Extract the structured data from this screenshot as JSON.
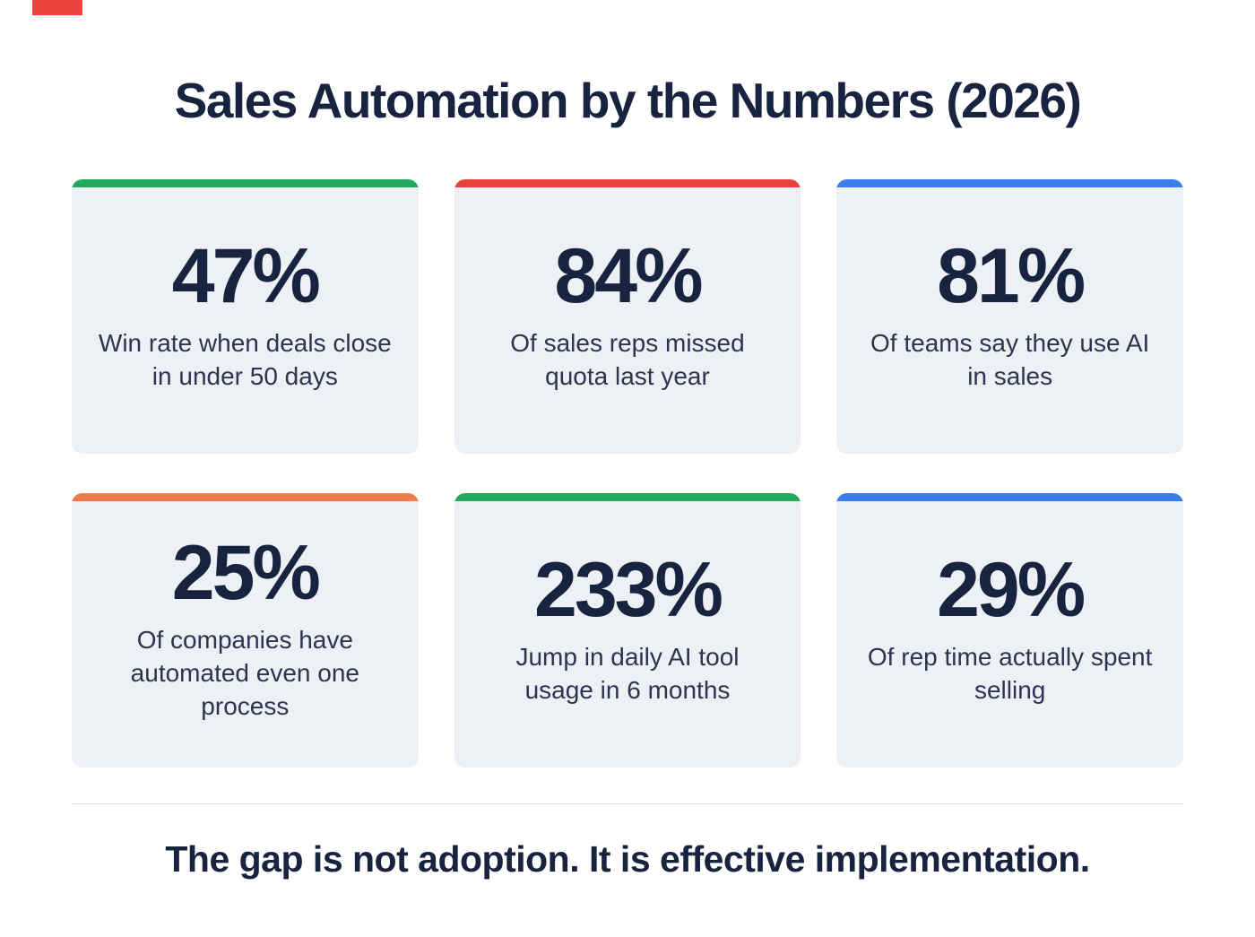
{
  "page": {
    "title": "Sales Automation by the Numbers (2026)",
    "footer": "The gap is not adoption. It is effective implementation."
  },
  "decor": {
    "corner_mark_color": "#E8423D"
  },
  "cards": [
    {
      "value": "47%",
      "label": "Win rate when deals close in under 50 days",
      "accent_color": "#22A95B"
    },
    {
      "value": "84%",
      "label": "Of sales reps missed quota last year",
      "accent_color": "#E8423D"
    },
    {
      "value": "81%",
      "label": "Of teams say they use AI in sales",
      "accent_color": "#3B7DE9"
    },
    {
      "value": "25%",
      "label": "Of companies have automated even one process",
      "accent_color": "#F27A4D"
    },
    {
      "value": "233%",
      "label": "Jump in daily AI tool usage in 6 months",
      "accent_color": "#22A95B"
    },
    {
      "value": "29%",
      "label": "Of rep time actually spent selling",
      "accent_color": "#3B7DE9"
    }
  ],
  "chart_data": {
    "type": "table",
    "title": "Sales Automation by the Numbers (2026)",
    "unit": "%",
    "categories": [
      "Win rate when deals close in under 50 days",
      "Of sales reps missed quota last year",
      "Of teams say they use AI in sales",
      "Of companies have automated even one process",
      "Jump in daily AI tool usage in 6 months",
      "Of rep time actually spent selling"
    ],
    "values": [
      47,
      84,
      81,
      25,
      233,
      29
    ],
    "annotations": [
      "The gap is not adoption. It is effective implementation."
    ],
    "layout": "2 rows x 3 columns of stat cards"
  }
}
